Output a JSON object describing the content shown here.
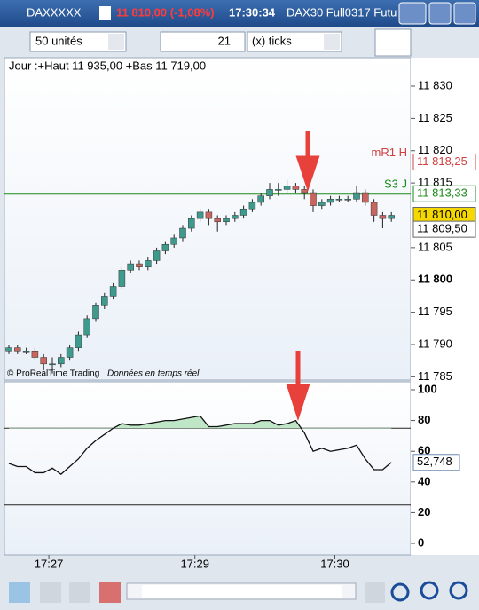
{
  "title_bar": {
    "symbol": "DAXXXXX",
    "quote": "11 810,00 (-1,08%)",
    "time": "17:30:34",
    "contract": "DAX30 Full0317 Futu"
  },
  "toolbar": {
    "quantity": "50 unités",
    "ticks_value": "21",
    "ticks_unit": "(x) ticks"
  },
  "chart_data": [
    {
      "type": "candlestick",
      "header": "Jour :+Haut 11 935,00 +Bas 11 719,00",
      "watermark": "© ProRealTime Trading",
      "realtime": "Données en temps réel",
      "up_color": "#3d9a8c",
      "down_color": "#c8655e",
      "candles": [
        [
          11789,
          11790,
          11788.5,
          11789.5
        ],
        [
          11789.5,
          11790,
          11788.5,
          11789
        ],
        [
          11789,
          11789.5,
          11788.5,
          11789
        ],
        [
          11789,
          11789.5,
          11787.5,
          11788
        ],
        [
          11788,
          11788.5,
          11786,
          11787
        ],
        [
          11787,
          11788,
          11785.5,
          11787
        ],
        [
          11787,
          11788.5,
          11786.5,
          11788
        ],
        [
          11788,
          11790,
          11787.5,
          11789.5
        ],
        [
          11789.5,
          11792,
          11789,
          11791.5
        ],
        [
          11791.5,
          11794.5,
          11791,
          11794
        ],
        [
          11794,
          11796.5,
          11793.5,
          11796
        ],
        [
          11796,
          11798,
          11795.5,
          11797.5
        ],
        [
          11797.5,
          11799.5,
          11797,
          11799
        ],
        [
          11799,
          11802,
          11798.5,
          11801.5
        ],
        [
          11801.5,
          11803,
          11801,
          11802.5
        ],
        [
          11802.5,
          11803,
          11801.5,
          11802
        ],
        [
          11802,
          11803.5,
          11801.5,
          11803
        ],
        [
          11803,
          11805,
          11802.5,
          11804.5
        ],
        [
          11804.5,
          11806,
          11804,
          11805.5
        ],
        [
          11805.5,
          11807,
          11805,
          11806.5
        ],
        [
          11806.5,
          11808.5,
          11806,
          11808
        ],
        [
          11808,
          11810,
          11807.5,
          11809.5
        ],
        [
          11809.5,
          11811,
          11809,
          11810.5
        ],
        [
          11810.5,
          11811,
          11808.5,
          11809.5
        ],
        [
          11809.5,
          11810,
          11807.5,
          11809
        ],
        [
          11809,
          11810,
          11808.5,
          11809.5
        ],
        [
          11809.5,
          11810.5,
          11809,
          11810
        ],
        [
          11810,
          11811.5,
          11809.5,
          11811
        ],
        [
          11811,
          11812.5,
          11810.5,
          11812
        ],
        [
          11812,
          11813.5,
          11811.5,
          11813
        ],
        [
          11813,
          11815,
          11812.5,
          11814
        ],
        [
          11814,
          11815,
          11813,
          11814
        ],
        [
          11814,
          11815.5,
          11813.5,
          11814.5
        ],
        [
          11814.5,
          11815,
          11813.5,
          11814
        ],
        [
          11814,
          11814.5,
          11812.5,
          11813.5
        ],
        [
          11813.5,
          11814,
          11810.5,
          11811.5
        ],
        [
          11811.5,
          11812.5,
          11811,
          11812
        ],
        [
          11812,
          11813,
          11811.5,
          11812.5
        ],
        [
          11812.5,
          11813,
          11812,
          11812.5
        ],
        [
          11812.5,
          11813,
          11812,
          11812.5
        ],
        [
          11812.5,
          11814.5,
          11812,
          11813.5
        ],
        [
          11813.5,
          11814,
          11811.5,
          11812
        ],
        [
          11812,
          11812.5,
          11809,
          11810
        ],
        [
          11810,
          11810.5,
          11808,
          11809.5
        ],
        [
          11809.5,
          11810.5,
          11809,
          11810
        ]
      ],
      "ylim": [
        11784.5,
        11834.4
      ],
      "yticks": [
        {
          "value": 11785,
          "label": "11 785"
        },
        {
          "value": 11790,
          "label": "11 790"
        },
        {
          "value": 11795,
          "label": "11 795"
        },
        {
          "value": 11800,
          "label": "11 800"
        },
        {
          "value": 11805,
          "label": "11 805"
        },
        {
          "value": 11815,
          "label": "11 815"
        },
        {
          "value": 11820,
          "label": "11 820"
        },
        {
          "value": 11825,
          "label": "11 825"
        },
        {
          "value": 11830,
          "label": "11 830"
        }
      ],
      "levels": [
        {
          "name": "mR1 H",
          "value": 11818.25,
          "label": "11 818,25",
          "color": "#d04040",
          "dashed": true
        },
        {
          "name": "S3 J",
          "value": 11813.33,
          "label": "11 813,33",
          "color": "#1a8a1a",
          "dashed": false
        }
      ],
      "price_tags": [
        {
          "value": 11810,
          "label": "11 810,00",
          "color": "#f5d800"
        },
        {
          "value": 11809.5,
          "label": "11 809,50",
          "color": "#ffffff"
        }
      ],
      "xticks": [
        {
          "value": 4.6,
          "label": "17:27"
        },
        {
          "value": 21.4,
          "label": "17:29"
        },
        {
          "value": 37.5,
          "label": "17:30"
        }
      ]
    },
    {
      "type": "line",
      "color": "#111111",
      "values": [
        52,
        50,
        50,
        46,
        46,
        49,
        45,
        50,
        55,
        62,
        67,
        71,
        75,
        78,
        77,
        77,
        78,
        79,
        80,
        80,
        81,
        82,
        83,
        76,
        76,
        77,
        78,
        78,
        78,
        80,
        80,
        77,
        78,
        80,
        72,
        60,
        62,
        60,
        61,
        62,
        64,
        55,
        48,
        48,
        52.748
      ],
      "last_label": "52,748",
      "bands": [
        75,
        25
      ],
      "ylim": [
        -7.5,
        105.2
      ],
      "yticks": [
        0,
        20,
        40,
        60,
        80,
        100
      ]
    }
  ]
}
